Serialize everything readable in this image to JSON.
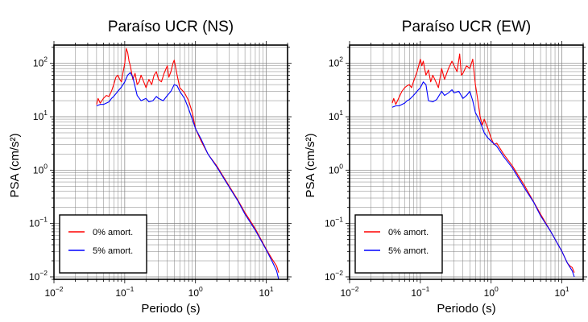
{
  "colors": {
    "series_0": "#ff0000",
    "series_5": "#0000ff",
    "grid": "#808080",
    "frame": "#000000"
  },
  "chart_data": [
    {
      "type": "line",
      "title": "Paraíso UCR (NS)",
      "xlabel": "Periodo (s)",
      "ylabel": "PSA (cm/s²)",
      "xscale": "log",
      "yscale": "log",
      "xlim": [
        0.01,
        20
      ],
      "ylim": [
        0.009,
        220
      ],
      "grid": true,
      "legend_placement": "bottom-left",
      "xticks": [
        {
          "base": "10",
          "exp": "−2",
          "value": 0.01
        },
        {
          "base": "10",
          "exp": "−1",
          "value": 0.1
        },
        {
          "base": "10",
          "exp": "0",
          "value": 1
        },
        {
          "base": "10",
          "exp": "1",
          "value": 10
        }
      ],
      "yticks": [
        {
          "base": "10",
          "exp": "−2",
          "value": 0.01
        },
        {
          "base": "10",
          "exp": "−1",
          "value": 0.1
        },
        {
          "base": "10",
          "exp": "0",
          "value": 1
        },
        {
          "base": "10",
          "exp": "1",
          "value": 10
        },
        {
          "base": "10",
          "exp": "2",
          "value": 100
        }
      ],
      "series": [
        {
          "name": "0% amort.",
          "color": "#ff0000",
          "x": [
            0.04,
            0.042,
            0.045,
            0.05,
            0.055,
            0.06,
            0.065,
            0.07,
            0.075,
            0.08,
            0.085,
            0.09,
            0.095,
            0.1,
            0.105,
            0.11,
            0.115,
            0.12,
            0.13,
            0.14,
            0.15,
            0.16,
            0.17,
            0.18,
            0.2,
            0.22,
            0.24,
            0.26,
            0.28,
            0.3,
            0.33,
            0.36,
            0.4,
            0.42,
            0.45,
            0.48,
            0.5,
            0.55,
            0.6,
            0.7,
            0.8,
            0.9,
            1.0,
            1.2,
            1.5,
            2,
            3,
            4,
            5,
            7,
            10,
            12,
            14,
            15
          ],
          "y": [
            17,
            22,
            18,
            22,
            25,
            24,
            30,
            40,
            55,
            60,
            50,
            45,
            70,
            100,
            190,
            160,
            110,
            90,
            50,
            65,
            40,
            45,
            60,
            50,
            35,
            50,
            40,
            60,
            70,
            50,
            45,
            65,
            90,
            55,
            70,
            100,
            115,
            60,
            35,
            28,
            20,
            12,
            6,
            3.5,
            2,
            1.2,
            0.5,
            0.27,
            0.16,
            0.08,
            0.033,
            0.022,
            0.016,
            0.012
          ]
        },
        {
          "name": "5% amort.",
          "color": "#0000ff",
          "x": [
            0.04,
            0.045,
            0.05,
            0.055,
            0.06,
            0.065,
            0.07,
            0.08,
            0.09,
            0.1,
            0.11,
            0.12,
            0.13,
            0.15,
            0.17,
            0.2,
            0.22,
            0.25,
            0.28,
            0.3,
            0.35,
            0.4,
            0.45,
            0.5,
            0.55,
            0.6,
            0.7,
            0.8,
            0.9,
            1.0,
            1.2,
            1.5,
            2,
            3,
            4,
            5,
            7,
            10,
            12,
            14,
            15
          ],
          "y": [
            16,
            17,
            17,
            18,
            19,
            22,
            24,
            30,
            36,
            45,
            60,
            67,
            55,
            25,
            20,
            22,
            19,
            20,
            24,
            22,
            20,
            25,
            30,
            40,
            38,
            30,
            22,
            14,
            9,
            6,
            3.8,
            2,
            1.15,
            0.48,
            0.26,
            0.15,
            0.075,
            0.032,
            0.02,
            0.013,
            0.009
          ]
        }
      ]
    },
    {
      "type": "line",
      "title": "Paraíso UCR (EW)",
      "xlabel": "Periodo (s)",
      "ylabel": "PSA (cm/s²)",
      "xscale": "log",
      "yscale": "log",
      "xlim": [
        0.01,
        20
      ],
      "ylim": [
        0.009,
        220
      ],
      "grid": true,
      "legend_placement": "bottom-left",
      "xticks": [
        {
          "base": "10",
          "exp": "−2",
          "value": 0.01
        },
        {
          "base": "10",
          "exp": "−1",
          "value": 0.1
        },
        {
          "base": "10",
          "exp": "0",
          "value": 1
        },
        {
          "base": "10",
          "exp": "1",
          "value": 10
        }
      ],
      "yticks": [
        {
          "base": "10",
          "exp": "−2",
          "value": 0.01
        },
        {
          "base": "10",
          "exp": "−1",
          "value": 0.1
        },
        {
          "base": "10",
          "exp": "0",
          "value": 1
        },
        {
          "base": "10",
          "exp": "1",
          "value": 10
        },
        {
          "base": "10",
          "exp": "2",
          "value": 100
        }
      ],
      "series": [
        {
          "name": "0% amort.",
          "color": "#ff0000",
          "x": [
            0.04,
            0.042,
            0.045,
            0.05,
            0.055,
            0.06,
            0.065,
            0.07,
            0.075,
            0.08,
            0.09,
            0.1,
            0.105,
            0.11,
            0.115,
            0.12,
            0.13,
            0.14,
            0.15,
            0.16,
            0.18,
            0.2,
            0.22,
            0.25,
            0.28,
            0.3,
            0.33,
            0.36,
            0.38,
            0.4,
            0.45,
            0.5,
            0.55,
            0.6,
            0.65,
            0.7,
            0.75,
            0.8,
            0.9,
            1.0,
            1.1,
            1.2,
            1.5,
            2,
            3,
            5,
            7,
            10,
            12,
            13,
            14,
            15
          ],
          "y": [
            18,
            22,
            17,
            23,
            30,
            35,
            38,
            40,
            35,
            45,
            70,
            120,
            90,
            110,
            80,
            60,
            75,
            45,
            60,
            50,
            35,
            80,
            50,
            80,
            110,
            90,
            70,
            150,
            60,
            65,
            90,
            80,
            120,
            40,
            20,
            10,
            7,
            9,
            6,
            4,
            3,
            3.2,
            2,
            1.2,
            0.5,
            0.15,
            0.07,
            0.03,
            0.018,
            0.016,
            0.015,
            0.012
          ]
        },
        {
          "name": "5% amort.",
          "color": "#0000ff",
          "x": [
            0.04,
            0.045,
            0.05,
            0.055,
            0.06,
            0.065,
            0.07,
            0.08,
            0.09,
            0.1,
            0.11,
            0.12,
            0.13,
            0.15,
            0.17,
            0.2,
            0.22,
            0.25,
            0.28,
            0.3,
            0.35,
            0.4,
            0.45,
            0.5,
            0.55,
            0.6,
            0.7,
            0.8,
            0.9,
            1.0,
            1.2,
            1.5,
            2,
            3,
            4,
            5,
            7,
            10,
            12,
            14,
            15
          ],
          "y": [
            15,
            16,
            16,
            17,
            18,
            20,
            21,
            25,
            30,
            35,
            45,
            40,
            20,
            19,
            21,
            30,
            25,
            28,
            32,
            28,
            30,
            22,
            25,
            30,
            20,
            12,
            8,
            5,
            4,
            3.5,
            2.8,
            1.8,
            1.1,
            0.45,
            0.25,
            0.14,
            0.07,
            0.03,
            0.018,
            0.013,
            0.01
          ]
        }
      ]
    }
  ]
}
